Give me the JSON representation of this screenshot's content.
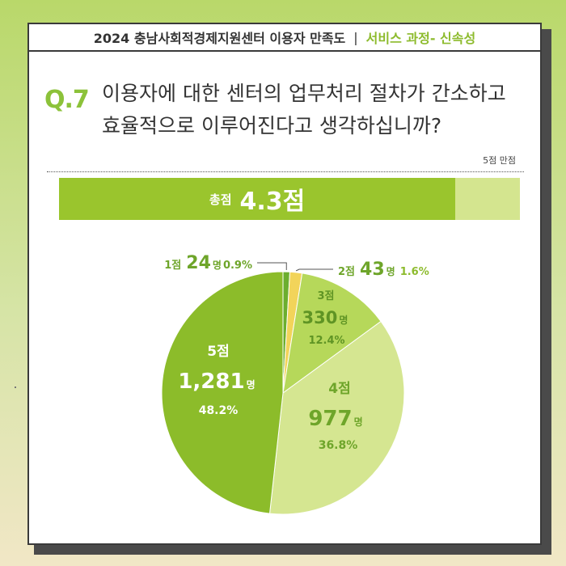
{
  "header": {
    "title_left": "2024 충남사회적경제지원센터 이용자 만족도",
    "separator": "|",
    "title_right": "서비스 과정- 신속성"
  },
  "question": {
    "number": "Q.7",
    "text_line1": "이용자에 대한 센터의 업무처리 절차가 간소하고",
    "text_line2": "효율적으로 이루어진다고 생각하십니까?"
  },
  "score": {
    "max_label": "5점 만점",
    "label": "총점",
    "value_text": "4.3점",
    "value": 4.3,
    "max": 5
  },
  "colors": {
    "bar_fill": "#9ac52d",
    "bar_bg": "#d4e58f",
    "accent": "#8cc23a"
  },
  "chart_data": {
    "type": "pie",
    "slices": [
      {
        "label": "1점",
        "count": 24,
        "count_text": "24",
        "unit": "명",
        "percent": 0.9,
        "percent_text": "0.9%",
        "color": "#6cae2e"
      },
      {
        "label": "2점",
        "count": 43,
        "count_text": "43",
        "unit": "명",
        "percent": 1.6,
        "percent_text": "1.6%",
        "color": "#f2d45a"
      },
      {
        "label": "3점",
        "count": 330,
        "count_text": "330",
        "unit": "명",
        "percent": 12.4,
        "percent_text": "12.4%",
        "color": "#b6d85a"
      },
      {
        "label": "4점",
        "count": 977,
        "count_text": "977",
        "unit": "명",
        "percent": 36.8,
        "percent_text": "36.8%",
        "color": "#d5e691"
      },
      {
        "label": "5점",
        "count": 1281,
        "count_text": "1,281",
        "unit": "명",
        "percent": 48.2,
        "percent_text": "48.2%",
        "color": "#8cbc2a"
      }
    ]
  }
}
